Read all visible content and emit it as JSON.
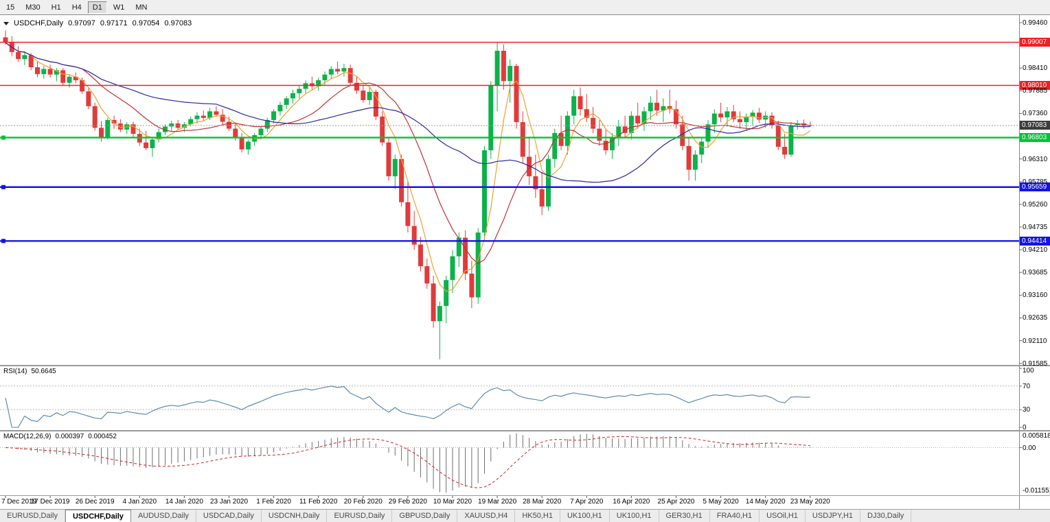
{
  "toolbar": {
    "periods": [
      {
        "label": "15",
        "active": false
      },
      {
        "label": "M30",
        "active": false
      },
      {
        "label": "H1",
        "active": false
      },
      {
        "label": "H4",
        "active": false
      },
      {
        "label": "D1",
        "active": true
      },
      {
        "label": "W1",
        "active": false
      },
      {
        "label": "MN",
        "active": false
      }
    ]
  },
  "chart": {
    "symbol_label": "USDCHF,Daily",
    "ohlc": {
      "open": "0.97097",
      "high": "0.97171",
      "low": "0.97054",
      "close": "0.97083"
    },
    "colors": {
      "up": "#0cb24a",
      "down": "#e23a3a"
    },
    "price_axis": {
      "labels": [
        "0.99460",
        "0.98410",
        "0.97885",
        "0.97360",
        "0.96310",
        "0.95785",
        "0.95260",
        "0.94735",
        "0.94210",
        "0.93685",
        "0.93160",
        "0.92635",
        "0.92110",
        "0.91585"
      ]
    },
    "hlines": [
      {
        "name": "resistance-line-1",
        "label": "0.99007",
        "value": 0.99007,
        "color": "#f02020",
        "width": 1.4,
        "handle": false
      },
      {
        "name": "resistance-line-2",
        "label": "0.98010",
        "value": 0.9801,
        "color": "#f02020",
        "width": 1.4,
        "handle": false
      },
      {
        "name": "support-line-green",
        "label": "0.96803",
        "value": 0.96803,
        "color": "#00c432",
        "width": 2.4,
        "handle": true
      },
      {
        "name": "support-line-blue-1",
        "label": "0.95659",
        "value": 0.95659,
        "color": "#1414e6",
        "width": 2.4,
        "handle": true
      },
      {
        "name": "support-line-blue-2",
        "label": "0.94414",
        "value": 0.94414,
        "color": "#1414e6",
        "width": 2.4,
        "handle": true
      }
    ],
    "current_price": {
      "label": "0.97083",
      "value": 0.97083,
      "badge_color": "#3c3c3c"
    },
    "ma": [
      {
        "name": "ma-fast-line",
        "period": 5,
        "color": "#f0a030"
      },
      {
        "name": "ma-medium-line",
        "period": 13,
        "color": "#c03232"
      },
      {
        "name": "ma-slow-line",
        "period": 34,
        "color": "#2828a0"
      }
    ],
    "candles": [
      [
        0.9912,
        0.9928,
        0.9895,
        0.99
      ],
      [
        0.99,
        0.9915,
        0.9868,
        0.9878
      ],
      [
        0.9878,
        0.9892,
        0.9855,
        0.9862
      ],
      [
        0.9862,
        0.988,
        0.9848,
        0.9871
      ],
      [
        0.9871,
        0.9876,
        0.9836,
        0.9843
      ],
      [
        0.9843,
        0.9856,
        0.982,
        0.9827
      ],
      [
        0.9827,
        0.9846,
        0.9816,
        0.9839
      ],
      [
        0.9839,
        0.9849,
        0.9819,
        0.9826
      ],
      [
        0.9826,
        0.9841,
        0.9811,
        0.9836
      ],
      [
        0.9836,
        0.9841,
        0.9801,
        0.9807
      ],
      [
        0.9807,
        0.9826,
        0.9796,
        0.9821
      ],
      [
        0.9821,
        0.9831,
        0.9806,
        0.9813
      ],
      [
        0.9813,
        0.9819,
        0.9781,
        0.9787
      ],
      [
        0.9787,
        0.9796,
        0.9746,
        0.9753
      ],
      [
        0.9753,
        0.9761,
        0.9696,
        0.9703
      ],
      [
        0.9703,
        0.9719,
        0.9671,
        0.9681
      ],
      [
        0.9681,
        0.9726,
        0.9676,
        0.9721
      ],
      [
        0.9721,
        0.9731,
        0.9701,
        0.9713
      ],
      [
        0.9713,
        0.9723,
        0.9693,
        0.9699
      ],
      [
        0.9699,
        0.9716,
        0.9689,
        0.9711
      ],
      [
        0.9711,
        0.9717,
        0.9681,
        0.9689
      ],
      [
        0.9689,
        0.9701,
        0.9661,
        0.9669
      ],
      [
        0.9669,
        0.9696,
        0.9651,
        0.9656
      ],
      [
        0.9656,
        0.9681,
        0.9636,
        0.9676
      ],
      [
        0.9676,
        0.9701,
        0.9669,
        0.9693
      ],
      [
        0.9693,
        0.9711,
        0.9686,
        0.9706
      ],
      [
        0.9706,
        0.9719,
        0.9696,
        0.9713
      ],
      [
        0.9713,
        0.9721,
        0.9699,
        0.9703
      ],
      [
        0.9703,
        0.9716,
        0.9693,
        0.9711
      ],
      [
        0.9711,
        0.9729,
        0.9706,
        0.9723
      ],
      [
        0.9723,
        0.9739,
        0.9713,
        0.9731
      ],
      [
        0.9731,
        0.9743,
        0.9719,
        0.9726
      ],
      [
        0.9726,
        0.9749,
        0.9721,
        0.9741
      ],
      [
        0.9741,
        0.9753,
        0.9729,
        0.9733
      ],
      [
        0.9733,
        0.9746,
        0.9711,
        0.9717
      ],
      [
        0.9717,
        0.9729,
        0.9696,
        0.9701
      ],
      [
        0.9701,
        0.9713,
        0.9673,
        0.9679
      ],
      [
        0.9679,
        0.9691,
        0.9646,
        0.9653
      ],
      [
        0.9653,
        0.9676,
        0.9641,
        0.9671
      ],
      [
        0.9671,
        0.9691,
        0.9661,
        0.9686
      ],
      [
        0.9686,
        0.9706,
        0.9676,
        0.9701
      ],
      [
        0.9701,
        0.9726,
        0.9693,
        0.9721
      ],
      [
        0.9721,
        0.9746,
        0.9713,
        0.9741
      ],
      [
        0.9741,
        0.9763,
        0.9731,
        0.9756
      ],
      [
        0.9756,
        0.9776,
        0.9746,
        0.9771
      ],
      [
        0.9771,
        0.9791,
        0.9759,
        0.9783
      ],
      [
        0.9783,
        0.9801,
        0.9771,
        0.9793
      ],
      [
        0.9793,
        0.9813,
        0.9781,
        0.9806
      ],
      [
        0.9806,
        0.9821,
        0.9791,
        0.9799
      ],
      [
        0.9799,
        0.9819,
        0.9789,
        0.9813
      ],
      [
        0.9813,
        0.9833,
        0.9801,
        0.9826
      ],
      [
        0.9826,
        0.9846,
        0.9816,
        0.9839
      ],
      [
        0.9839,
        0.9856,
        0.9826,
        0.9833
      ],
      [
        0.9833,
        0.9851,
        0.9821,
        0.9841
      ],
      [
        0.9841,
        0.9849,
        0.9801,
        0.9807
      ],
      [
        0.9807,
        0.9821,
        0.9781,
        0.9789
      ],
      [
        0.9789,
        0.9801,
        0.9761,
        0.9767
      ],
      [
        0.9767,
        0.9796,
        0.9756,
        0.9786
      ],
      [
        0.9786,
        0.9791,
        0.9721,
        0.9729
      ],
      [
        0.9729,
        0.9741,
        0.9661,
        0.9669
      ],
      [
        0.9669,
        0.9681,
        0.9581,
        0.9591
      ],
      [
        0.9591,
        0.9641,
        0.9561,
        0.9631
      ],
      [
        0.9631,
        0.9641,
        0.9521,
        0.9531
      ],
      [
        0.9531,
        0.9581,
        0.9461,
        0.9476
      ],
      [
        0.9476,
        0.9511,
        0.9421,
        0.9433
      ],
      [
        0.9433,
        0.9451,
        0.9371,
        0.9383
      ],
      [
        0.9383,
        0.9401,
        0.9331,
        0.9343
      ],
      [
        0.9343,
        0.9361,
        0.9241,
        0.9256
      ],
      [
        0.9256,
        0.9301,
        0.9168,
        0.9291
      ],
      [
        0.9291,
        0.9361,
        0.9251,
        0.9351
      ],
      [
        0.9351,
        0.9421,
        0.9321,
        0.9406
      ],
      [
        0.9406,
        0.9461,
        0.9381,
        0.9449
      ],
      [
        0.9449,
        0.9466,
        0.9351,
        0.9366
      ],
      [
        0.9366,
        0.9396,
        0.9286,
        0.9311
      ],
      [
        0.9311,
        0.9471,
        0.9296,
        0.9461
      ],
      [
        0.9461,
        0.9661,
        0.9441,
        0.9651
      ],
      [
        0.9651,
        0.9811,
        0.9631,
        0.9801
      ],
      [
        0.9801,
        0.9901,
        0.9741,
        0.9881
      ],
      [
        0.9881,
        0.9896,
        0.9791,
        0.9811
      ],
      [
        0.9811,
        0.9861,
        0.9761,
        0.9846
      ],
      [
        0.9846,
        0.9851,
        0.9701,
        0.9716
      ],
      [
        0.9716,
        0.9741,
        0.9621,
        0.9636
      ],
      [
        0.9636,
        0.9681,
        0.9571,
        0.9591
      ],
      [
        0.9591,
        0.9641,
        0.9541,
        0.9561
      ],
      [
        0.9561,
        0.9601,
        0.9501,
        0.9521
      ],
      [
        0.9521,
        0.9641,
        0.9511,
        0.9631
      ],
      [
        0.9631,
        0.9701,
        0.9611,
        0.9691
      ],
      [
        0.9691,
        0.9731,
        0.9651,
        0.9661
      ],
      [
        0.9661,
        0.9741,
        0.9641,
        0.9731
      ],
      [
        0.9731,
        0.9791,
        0.9711,
        0.9776
      ],
      [
        0.9776,
        0.9796,
        0.9731,
        0.9746
      ],
      [
        0.9746,
        0.9781,
        0.9716,
        0.9726
      ],
      [
        0.9726,
        0.9751,
        0.9691,
        0.9701
      ],
      [
        0.9701,
        0.9721,
        0.9661,
        0.9673
      ],
      [
        0.9673,
        0.9701,
        0.9641,
        0.9651
      ],
      [
        0.9651,
        0.9691,
        0.9631,
        0.9681
      ],
      [
        0.9681,
        0.9721,
        0.9661,
        0.9706
      ],
      [
        0.9706,
        0.9731,
        0.9681,
        0.9691
      ],
      [
        0.9691,
        0.9741,
        0.9676,
        0.9731
      ],
      [
        0.9731,
        0.9761,
        0.9701,
        0.9713
      ],
      [
        0.9713,
        0.9751,
        0.9696,
        0.9741
      ],
      [
        0.9741,
        0.9776,
        0.9721,
        0.9761
      ],
      [
        0.9761,
        0.9791,
        0.9731,
        0.9743
      ],
      [
        0.9743,
        0.9771,
        0.9716,
        0.9753
      ],
      [
        0.9753,
        0.9791,
        0.9736,
        0.9746
      ],
      [
        0.9746,
        0.9766,
        0.9701,
        0.9711
      ],
      [
        0.9711,
        0.9731,
        0.9651,
        0.9661
      ],
      [
        0.9661,
        0.9681,
        0.9581,
        0.9606
      ],
      [
        0.9606,
        0.9651,
        0.9581,
        0.9641
      ],
      [
        0.9641,
        0.9681,
        0.9621,
        0.9671
      ],
      [
        0.9671,
        0.9721,
        0.9656,
        0.9711
      ],
      [
        0.9711,
        0.9746,
        0.9691,
        0.9736
      ],
      [
        0.9736,
        0.9761,
        0.9716,
        0.9727
      ],
      [
        0.9727,
        0.9751,
        0.9706,
        0.9741
      ],
      [
        0.9741,
        0.9756,
        0.9716,
        0.9723
      ],
      [
        0.9723,
        0.9741,
        0.9701,
        0.9716
      ],
      [
        0.9716,
        0.9736,
        0.9696,
        0.9729
      ],
      [
        0.9729,
        0.9744,
        0.9709,
        0.9738
      ],
      [
        0.9738,
        0.9749,
        0.9714,
        0.9722
      ],
      [
        0.9722,
        0.9741,
        0.9703,
        0.9731
      ],
      [
        0.9731,
        0.9739,
        0.9701,
        0.9709
      ],
      [
        0.9709,
        0.9719,
        0.9651,
        0.9659
      ],
      [
        0.9659,
        0.9689,
        0.9631,
        0.9641
      ],
      [
        0.9641,
        0.9716,
        0.9636,
        0.9709
      ],
      [
        0.9709,
        0.9721,
        0.9699,
        0.9713
      ],
      [
        0.9713,
        0.9722,
        0.9701,
        0.9708
      ],
      [
        0.97097,
        0.97171,
        0.97054,
        0.97083
      ]
    ]
  },
  "rsi": {
    "name": "RSI(14)",
    "value": "50.6645",
    "period": 14,
    "color": "#4f81a8",
    "levels": [
      {
        "label": "100",
        "value": 100,
        "dashed": false
      },
      {
        "label": "70",
        "value": 70,
        "dashed": true
      },
      {
        "label": "30",
        "value": 30,
        "dashed": true
      },
      {
        "label": "0",
        "value": 0,
        "dashed": false
      }
    ]
  },
  "macd": {
    "name": "MACD(12,26,9)",
    "main_value": "0.000397",
    "signal_value": "0.000452",
    "fast": 12,
    "slow": 26,
    "signal": 9,
    "hist_color": "#6e6e6e",
    "signal_color": "#d02020",
    "axis": {
      "top": "0.0058185",
      "zero": "0.00",
      "bottom": "-0.0115510"
    }
  },
  "date_axis": {
    "step": 7,
    "labels": [
      "7 Dec 2019",
      "17 Dec 2019",
      "26 Dec 2019",
      "4 Jan 2020",
      "14 Jan 2020",
      "23 Jan 2020",
      "1 Feb 2020",
      "11 Feb 2020",
      "20 Feb 2020",
      "29 Feb 2020",
      "10 Mar 2020",
      "19 Mar 2020",
      "28 Mar 2020",
      "7 Apr 2020",
      "16 Apr 2020",
      "25 Apr 2020",
      "5 May 2020",
      "14 May 2020",
      "23 May 2020"
    ]
  },
  "tabs": [
    {
      "label": "EURUSD,Daily",
      "active": false
    },
    {
      "label": "USDCHF,Daily",
      "active": true
    },
    {
      "label": "AUDUSD,Daily",
      "active": false
    },
    {
      "label": "USDCAD,Daily",
      "active": false
    },
    {
      "label": "USDCNH,Daily",
      "active": false
    },
    {
      "label": "EURUSD,Daily",
      "active": false
    },
    {
      "label": "GBPUSD,Daily",
      "active": false
    },
    {
      "label": "XAUUSD,H4",
      "active": false
    },
    {
      "label": "HK50,H1",
      "active": false
    },
    {
      "label": "UK100,H1",
      "active": false
    },
    {
      "label": "UK100,H1",
      "active": false
    },
    {
      "label": "GER30,H1",
      "active": false
    },
    {
      "label": "FRA40,H1",
      "active": false
    },
    {
      "label": "USOil,H1",
      "active": false
    },
    {
      "label": "USDJPY,H1",
      "active": false
    },
    {
      "label": "DJ30,Daily",
      "active": false
    }
  ]
}
